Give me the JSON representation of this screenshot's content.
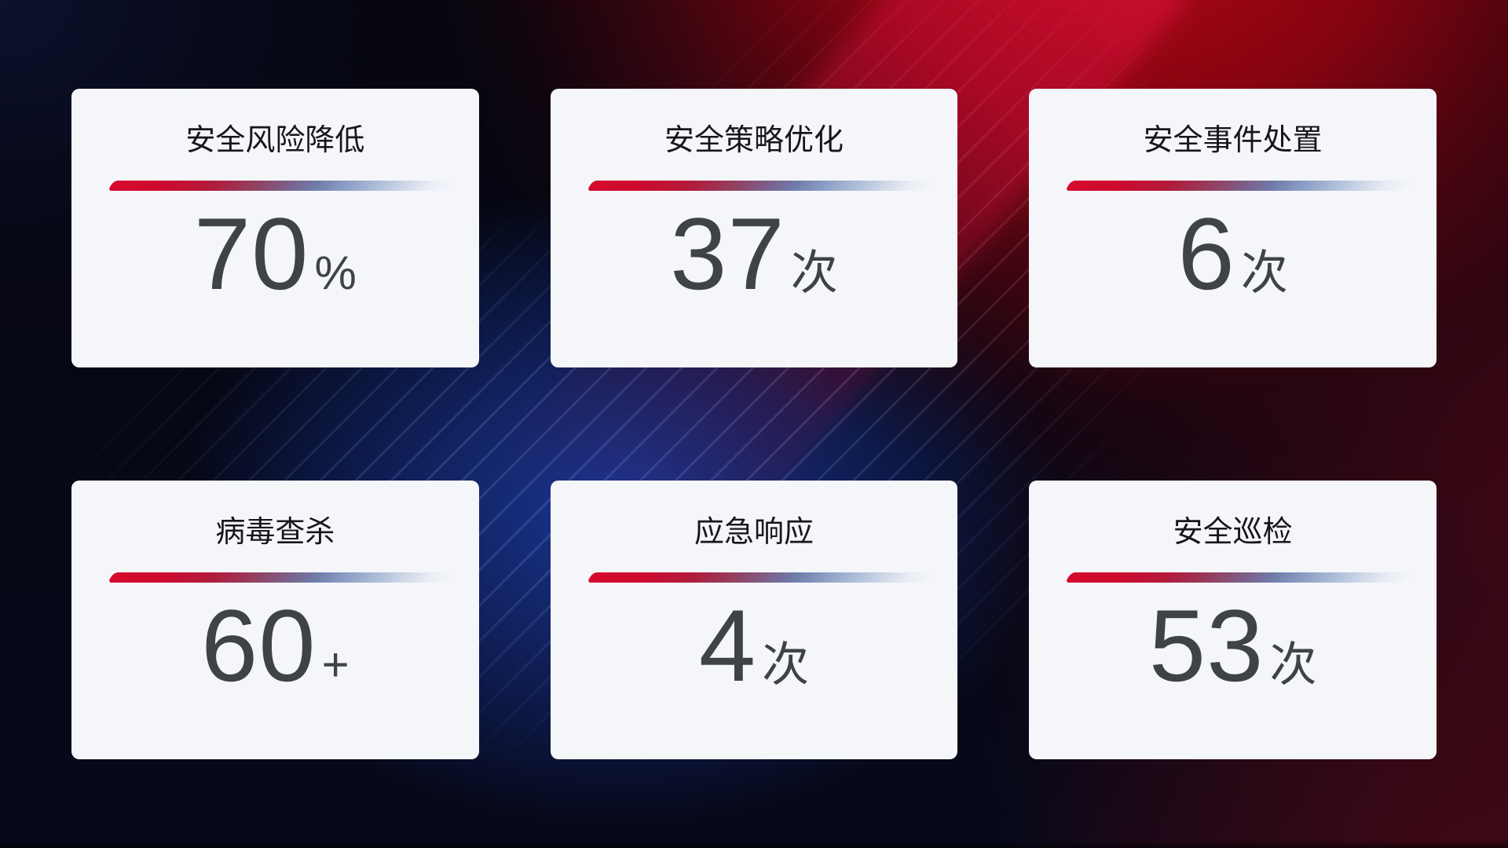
{
  "dashboard": {
    "cards": [
      {
        "name": "security-risk-reduction",
        "title": "安全风险降低",
        "value": "70",
        "unit": "%"
      },
      {
        "name": "security-policy-optimization",
        "title": "安全策略优化",
        "value": "37",
        "unit": "次"
      },
      {
        "name": "security-incident-handling",
        "title": "安全事件处置",
        "value": "6",
        "unit": "次"
      },
      {
        "name": "virus-scan-kill",
        "title": "病毒查杀",
        "value": "60",
        "unit": "+"
      },
      {
        "name": "emergency-response",
        "title": "应急响应",
        "value": "4",
        "unit": "次"
      },
      {
        "name": "security-inspection",
        "title": "安全巡检",
        "value": "53",
        "unit": "次"
      }
    ],
    "colors": {
      "card_background": "#f5f6fa",
      "title_text": "#17171b",
      "value_text": "#3f4246",
      "divider_gradient_start": "#d60a2c",
      "divider_gradient_mid": "#7b608c",
      "divider_gradient_end": "#e9edf5",
      "background_base": "#07091a",
      "background_red_glow": "#a00513",
      "background_blue_glow": "#1e3ea8"
    }
  }
}
